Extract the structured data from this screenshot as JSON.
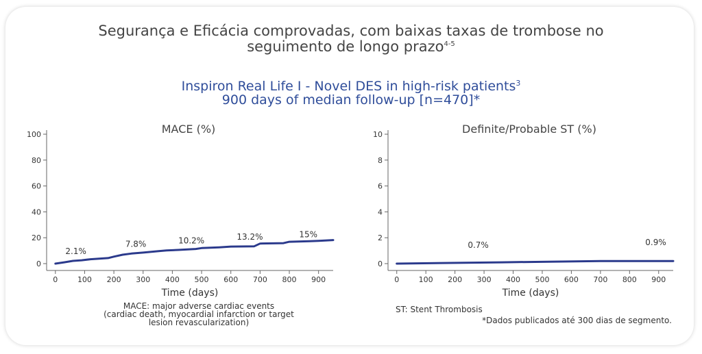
{
  "header": {
    "title_line1": "Segurança e Eficácia comprovadas, com baixas taxas de trombose no",
    "title_line2": "seguimento de longo prazo",
    "title_ref": "4-5",
    "subtitle_line1": "Inspiron Real Life I - Novel DES in high-risk patients",
    "subtitle_ref": "3",
    "subtitle_line2": "900 days of median follow-up [n=470]*"
  },
  "colors": {
    "series": "#2b3a8c",
    "title": "#444444",
    "subtitle": "#2f4d9a"
  },
  "chart_data": [
    {
      "type": "line",
      "title": "MACE (%)",
      "xlabel": "Time (days)",
      "ylabel": "",
      "xlim": [
        -30,
        950
      ],
      "ylim": [
        0,
        100
      ],
      "xticks": [
        0,
        100,
        200,
        300,
        400,
        500,
        600,
        700,
        800,
        900
      ],
      "yticks": [
        0,
        20,
        40,
        60,
        80,
        100
      ],
      "grid": false,
      "series": [
        {
          "x": [
            0,
            30,
            60,
            90,
            120,
            150,
            180,
            200,
            230,
            260,
            300,
            350,
            380,
            420,
            480,
            500,
            560,
            600,
            680,
            700,
            780,
            800,
            870,
            900,
            950
          ],
          "y": [
            0,
            1.0,
            2.1,
            2.6,
            3.4,
            3.8,
            4.3,
            5.4,
            6.9,
            7.8,
            8.5,
            9.6,
            10.2,
            10.6,
            11.3,
            12.0,
            12.6,
            13.2,
            13.4,
            15.5,
            15.8,
            16.9,
            17.3,
            17.6,
            18.2
          ]
        }
      ],
      "annotations": [
        {
          "x": 70,
          "y": 2.1,
          "text": "2.1%"
        },
        {
          "x": 275,
          "y": 7.8,
          "text": "7.8%"
        },
        {
          "x": 465,
          "y": 10.2,
          "text": "10.2%"
        },
        {
          "x": 665,
          "y": 13.2,
          "text": "13.2%"
        },
        {
          "x": 865,
          "y": 15,
          "text": "15%"
        }
      ],
      "footnote": [
        "MACE:  major adverse cardiac events",
        "(cardiac death, myocardial infarction or target",
        "lesion revascularization)"
      ]
    },
    {
      "type": "line",
      "title": "Definite/Probable ST (%)",
      "xlabel": "Time (days)",
      "ylabel": "",
      "xlim": [
        -30,
        950
      ],
      "ylim": [
        0,
        10
      ],
      "xticks": [
        0,
        100,
        200,
        300,
        400,
        500,
        600,
        700,
        800,
        900
      ],
      "yticks": [
        0,
        2,
        4,
        6,
        8,
        10
      ],
      "grid": false,
      "series": [
        {
          "x": [
            0,
            360,
            520,
            700,
            950
          ],
          "y": [
            0,
            0.1,
            0.15,
            0.2,
            0.2
          ]
        }
      ],
      "annotations": [
        {
          "x": 280,
          "y": 0.7,
          "text": "0.7%"
        },
        {
          "x": 890,
          "y": 0.9,
          "text": "0.9%"
        }
      ],
      "footnote": [
        "ST: Stent Thrombosis"
      ]
    }
  ],
  "bottom_note": "*Dados publicados até 300 dias de segmento."
}
